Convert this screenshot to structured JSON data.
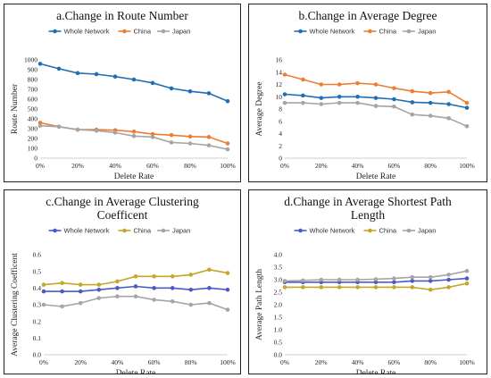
{
  "chart_data": [
    {
      "type": "line",
      "title": [
        "a.Change  in Route Number"
      ],
      "xlabel": "Delete Rate",
      "ylabel": "Route Number",
      "x": [
        0,
        10,
        20,
        30,
        40,
        50,
        60,
        70,
        80,
        90,
        100
      ],
      "xticks": [
        "0%",
        "20%",
        "40%",
        "60%",
        "80%",
        "100%"
      ],
      "ylim": [
        0,
        1000
      ],
      "ystep": 100,
      "series": [
        {
          "name": "Whole Network",
          "color": "#1f6fb5",
          "values": [
            960,
            910,
            865,
            855,
            830,
            800,
            765,
            710,
            680,
            660,
            580
          ]
        },
        {
          "name": "China",
          "color": "#ed7d31",
          "values": [
            360,
            320,
            290,
            290,
            285,
            270,
            245,
            235,
            220,
            215,
            150
          ]
        },
        {
          "name": "Japan",
          "color": "#a5a5a5",
          "values": [
            330,
            320,
            290,
            280,
            260,
            225,
            215,
            160,
            150,
            130,
            90
          ]
        }
      ]
    },
    {
      "type": "line",
      "title": [
        "b.Change  in Average Degree"
      ],
      "xlabel": "Delete Rate",
      "ylabel": "Average Degree",
      "x": [
        0,
        10,
        20,
        30,
        40,
        50,
        60,
        70,
        80,
        90,
        100
      ],
      "xticks": [
        "0%",
        "20%",
        "40%",
        "60%",
        "80%",
        "100%"
      ],
      "ylim": [
        0,
        16
      ],
      "ystep": 2,
      "series": [
        {
          "name": "Whole Network",
          "color": "#1f6fb5",
          "values": [
            10.4,
            10.2,
            9.8,
            10.0,
            10.0,
            9.8,
            9.6,
            9.1,
            9.0,
            8.8,
            8.2
          ]
        },
        {
          "name": "China",
          "color": "#ed7d31",
          "values": [
            13.6,
            12.8,
            12.0,
            12.0,
            12.2,
            12.0,
            11.4,
            10.9,
            10.6,
            10.8,
            9.0
          ]
        },
        {
          "name": "Japan",
          "color": "#a5a5a5",
          "values": [
            9.0,
            9.0,
            8.8,
            9.0,
            9.0,
            8.5,
            8.4,
            7.1,
            6.9,
            6.5,
            5.2
          ]
        }
      ]
    },
    {
      "type": "line",
      "title": [
        "c.Change  in Average Clustering",
        "Coefficent"
      ],
      "xlabel": "Delete Rate",
      "ylabel": "Average Clustering Coefficent",
      "x": [
        0,
        10,
        20,
        30,
        40,
        50,
        60,
        70,
        80,
        90,
        100
      ],
      "xticks": [
        "0%",
        "20%",
        "40%",
        "60%",
        "80%",
        "100%"
      ],
      "ylim": [
        0,
        0.6
      ],
      "ystep": 0.1,
      "series": [
        {
          "name": "Whole Network",
          "color": "#4a5bc4",
          "values": [
            0.38,
            0.38,
            0.38,
            0.39,
            0.4,
            0.41,
            0.4,
            0.4,
            0.39,
            0.4,
            0.39
          ]
        },
        {
          "name": "China",
          "color": "#c5a52a",
          "values": [
            0.42,
            0.43,
            0.42,
            0.42,
            0.44,
            0.47,
            0.47,
            0.47,
            0.48,
            0.51,
            0.49
          ]
        },
        {
          "name": "Japan",
          "color": "#a5a5a5",
          "values": [
            0.3,
            0.29,
            0.31,
            0.34,
            0.35,
            0.35,
            0.33,
            0.32,
            0.3,
            0.31,
            0.27
          ]
        }
      ]
    },
    {
      "type": "line",
      "title": [
        "d.Change  in Average Shortest Path",
        "Length"
      ],
      "xlabel": "Delete Rate",
      "ylabel": "Average Path Length",
      "x": [
        0,
        10,
        20,
        30,
        40,
        50,
        60,
        70,
        80,
        90,
        100
      ],
      "xticks": [
        "0%",
        "20%",
        "40%",
        "60%",
        "80%",
        "100%"
      ],
      "ylim": [
        0,
        4
      ],
      "ystep": 0.5,
      "series": [
        {
          "name": "Whole Network",
          "color": "#4a5bc4",
          "values": [
            2.9,
            2.9,
            2.9,
            2.9,
            2.9,
            2.9,
            2.9,
            2.95,
            2.95,
            3.0,
            3.05
          ]
        },
        {
          "name": "China",
          "color": "#c5a52a",
          "values": [
            2.7,
            2.7,
            2.7,
            2.7,
            2.7,
            2.7,
            2.7,
            2.7,
            2.6,
            2.7,
            2.85
          ]
        },
        {
          "name": "Japan",
          "color": "#a5a5a5",
          "values": [
            2.95,
            2.97,
            3.0,
            3.0,
            3.0,
            3.02,
            3.05,
            3.1,
            3.1,
            3.2,
            3.35
          ]
        }
      ]
    }
  ]
}
